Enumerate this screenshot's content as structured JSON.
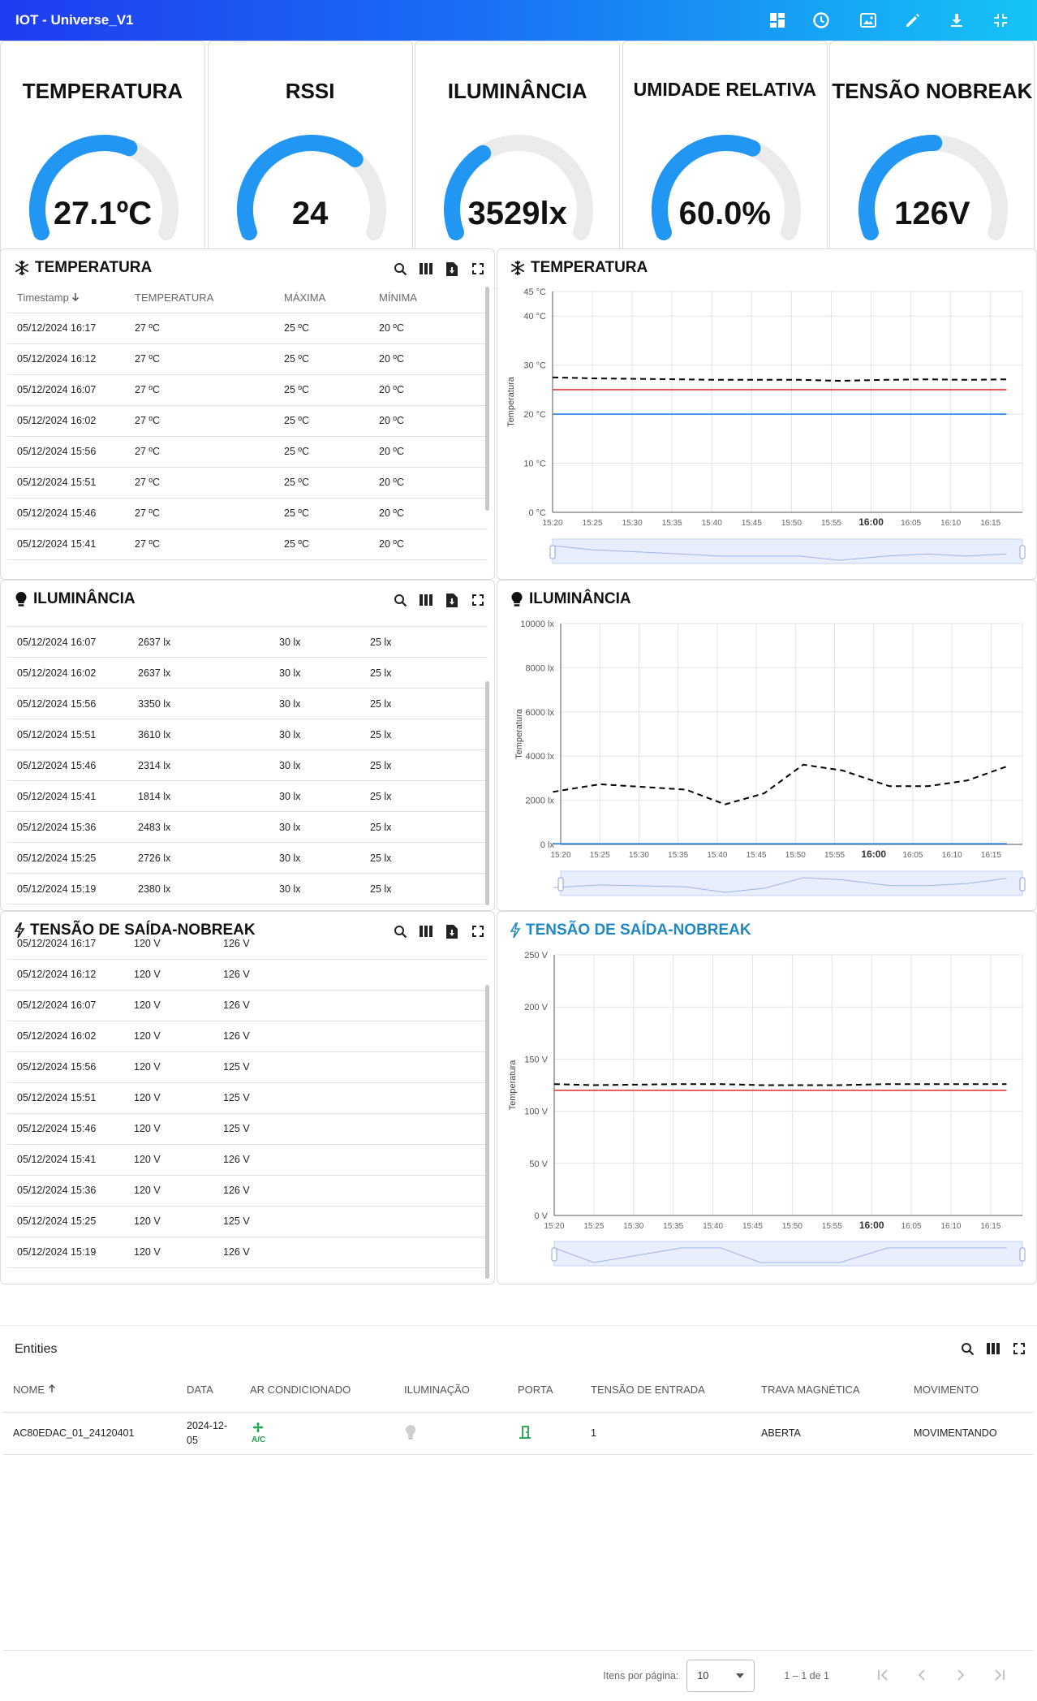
{
  "app": {
    "title": "IOT - Universe_V1"
  },
  "toolbar": {
    "icons": [
      "dashboard-icon",
      "clock-icon",
      "image-icon",
      "edit-icon",
      "download-icon",
      "fullscreen-exit-icon"
    ]
  },
  "gauges": [
    {
      "title": "TEMPERATURA",
      "value": "27.1ºC",
      "min": "0",
      "max": "45",
      "fraction": 0.602,
      "color": "#2196f3"
    },
    {
      "title": "RSSI",
      "value": "24",
      "min": "0",
      "max": "35",
      "fraction": 0.686,
      "color": "#2196f3"
    },
    {
      "title": "ILUMINÂNCIA",
      "value": "3529lx",
      "min": "0",
      "max": "10000",
      "fraction": 0.353,
      "color": "#2196f3"
    },
    {
      "title": "UMIDADE RELATIVA",
      "value": "60.0%",
      "min": "0",
      "max": "99",
      "fraction": 0.606,
      "color": "#2196f3"
    },
    {
      "title": "TENSÃO NOBREAK",
      "value": "126V",
      "min": "0",
      "max": "250",
      "fraction": 0.504,
      "color": "#2196f3"
    }
  ],
  "temp_table": {
    "title": "TEMPERATURA",
    "headers": [
      "Timestamp",
      "TEMPERATURA",
      "MÁXIMA",
      "MÍNIMA"
    ],
    "sort_icon": "arrow-down-icon",
    "rows": [
      [
        "05/12/2024 16:17",
        "27 ºC",
        "25 ºC",
        "20 ºC"
      ],
      [
        "05/12/2024 16:12",
        "27 ºC",
        "25 ºC",
        "20 ºC"
      ],
      [
        "05/12/2024 16:07",
        "27 ºC",
        "25 ºC",
        "20 ºC"
      ],
      [
        "05/12/2024 16:02",
        "27 ºC",
        "25 ºC",
        "20 ºC"
      ],
      [
        "05/12/2024 15:56",
        "27 ºC",
        "25 ºC",
        "20 ºC"
      ],
      [
        "05/12/2024 15:51",
        "27 ºC",
        "25 ºC",
        "20 ºC"
      ],
      [
        "05/12/2024 15:46",
        "27 ºC",
        "25 ºC",
        "20 ºC"
      ],
      [
        "05/12/2024 15:41",
        "27 ºC",
        "25 ºC",
        "20 ºC"
      ]
    ]
  },
  "lux_table": {
    "title": "ILUMINÂNCIA",
    "rows": [
      [
        "05/12/2024 16:07",
        "2637 lx",
        "30 lx",
        "25 lx"
      ],
      [
        "05/12/2024 16:02",
        "2637 lx",
        "30 lx",
        "25 lx"
      ],
      [
        "05/12/2024 15:56",
        "3350 lx",
        "30 lx",
        "25 lx"
      ],
      [
        "05/12/2024 15:51",
        "3610 lx",
        "30 lx",
        "25 lx"
      ],
      [
        "05/12/2024 15:46",
        "2314 lx",
        "30 lx",
        "25 lx"
      ],
      [
        "05/12/2024 15:41",
        "1814 lx",
        "30 lx",
        "25 lx"
      ],
      [
        "05/12/2024 15:36",
        "2483 lx",
        "30 lx",
        "25 lx"
      ],
      [
        "05/12/2024 15:25",
        "2726 lx",
        "30 lx",
        "25 lx"
      ],
      [
        "05/12/2024 15:19",
        "2380 lx",
        "30 lx",
        "25 lx"
      ]
    ]
  },
  "volt_table": {
    "title": "TENSÃO DE SAÍDA-NOBREAK",
    "rows": [
      [
        "05/12/2024 16:17",
        "120 V",
        "126 V"
      ],
      [
        "05/12/2024 16:12",
        "120 V",
        "126 V"
      ],
      [
        "05/12/2024 16:07",
        "120 V",
        "126 V"
      ],
      [
        "05/12/2024 16:02",
        "120 V",
        "126 V"
      ],
      [
        "05/12/2024 15:56",
        "120 V",
        "125 V"
      ],
      [
        "05/12/2024 15:51",
        "120 V",
        "125 V"
      ],
      [
        "05/12/2024 15:46",
        "120 V",
        "125 V"
      ],
      [
        "05/12/2024 15:41",
        "120 V",
        "126 V"
      ],
      [
        "05/12/2024 15:36",
        "120 V",
        "126 V"
      ],
      [
        "05/12/2024 15:25",
        "120 V",
        "125 V"
      ],
      [
        "05/12/2024 15:19",
        "120 V",
        "126 V"
      ]
    ]
  },
  "chart_data": [
    {
      "type": "line",
      "title": "TEMPERATURA",
      "ylabel": "Temperatura",
      "ylim": [
        0,
        45
      ],
      "yticks": [
        0,
        10,
        20,
        30,
        40,
        45
      ],
      "ytick_labels": [
        "0 °C",
        "10 °C",
        "20 °C",
        "30 °C",
        "40 °C",
        "45 °C"
      ],
      "xlim": [
        "15:20",
        "16:19"
      ],
      "xtick_labels": [
        "15:20",
        "15:25",
        "15:30",
        "15:35",
        "15:40",
        "15:45",
        "15:50",
        "15:55",
        "16:00",
        "16:05",
        "16:10",
        "16:15"
      ],
      "series": [
        {
          "color": "#000000",
          "dash": true,
          "x": [
            "15:20",
            "15:25",
            "15:36",
            "15:41",
            "15:46",
            "15:51",
            "15:56",
            "16:02",
            "16:07",
            "16:12",
            "16:17"
          ],
          "y": [
            27.5,
            27.3,
            27.1,
            27.0,
            27.0,
            27.0,
            26.8,
            27.0,
            27.1,
            27.0,
            27.1
          ]
        },
        {
          "color": "#e53935",
          "dash": false,
          "x": [
            "15:20",
            "16:17"
          ],
          "y": [
            25,
            25
          ]
        },
        {
          "color": "#1e88e5",
          "dash": false,
          "x": [
            "15:20",
            "16:17"
          ],
          "y": [
            20,
            20
          ]
        }
      ]
    },
    {
      "type": "line",
      "title": "ILUMINÂNCIA",
      "ylabel": "Temperatura",
      "ylim": [
        0,
        10000
      ],
      "yticks": [
        0,
        2000,
        4000,
        6000,
        8000,
        10000
      ],
      "ytick_labels": [
        "0 lx",
        "2000 lx",
        "4000 lx",
        "6000 lx",
        "8000 lx",
        "10000 lx"
      ],
      "xlim": [
        "15:20",
        "16:19"
      ],
      "xtick_labels": [
        "15:20",
        "15:25",
        "15:30",
        "15:35",
        "15:40",
        "15:45",
        "15:50",
        "15:55",
        "16:00",
        "16:05",
        "16:10",
        "16:15"
      ],
      "series": [
        {
          "color": "#000000",
          "dash": true,
          "x": [
            "15:19",
            "15:25",
            "15:36",
            "15:41",
            "15:46",
            "15:51",
            "15:56",
            "16:02",
            "16:07",
            "16:12",
            "16:17"
          ],
          "y": [
            2380,
            2726,
            2483,
            1814,
            2314,
            3610,
            3350,
            2637,
            2637,
            2900,
            3529
          ]
        },
        {
          "color": "#e53935",
          "dash": false,
          "x": [
            "15:19",
            "16:17"
          ],
          "y": [
            30,
            30
          ]
        },
        {
          "color": "#1e88e5",
          "dash": false,
          "x": [
            "15:19",
            "16:17"
          ],
          "y": [
            25,
            25
          ]
        }
      ]
    },
    {
      "type": "line",
      "title": "TENSÃO DE SAÍDA-NOBREAK",
      "ylabel": "Temperatura",
      "ylim": [
        0,
        250
      ],
      "yticks": [
        0,
        50,
        100,
        150,
        200,
        250
      ],
      "ytick_labels": [
        "0 V",
        "50 V",
        "100 V",
        "150 V",
        "200 V",
        "250 V"
      ],
      "xlim": [
        "15:20",
        "16:19"
      ],
      "xtick_labels": [
        "15:20",
        "15:25",
        "15:30",
        "15:35",
        "15:40",
        "15:45",
        "15:50",
        "15:55",
        "16:00",
        "16:05",
        "16:10",
        "16:15"
      ],
      "series": [
        {
          "color": "#000000",
          "dash": true,
          "x": [
            "15:20",
            "15:25",
            "15:36",
            "15:41",
            "15:46",
            "15:51",
            "15:56",
            "16:02",
            "16:07",
            "16:12",
            "16:17"
          ],
          "y": [
            126,
            125,
            126,
            126,
            125,
            125,
            125,
            126,
            126,
            126,
            126
          ]
        },
        {
          "color": "#e53935",
          "dash": false,
          "x": [
            "15:20",
            "16:17"
          ],
          "y": [
            120,
            120
          ]
        }
      ]
    }
  ],
  "entities": {
    "title": "Entities",
    "headers": [
      "NOME",
      "DATA",
      "AR CONDICIONADO",
      "ILUMINAÇÃO",
      "PORTA",
      "TENSÃO DE ENTRADA",
      "TRAVA MAGNÉTICA",
      "MOVIMENTO"
    ],
    "row": {
      "nome": "AC80EDAC_01_24120401",
      "data_line1": "2024-12-",
      "data_line2": "05",
      "ac_label": "A/C",
      "tensao": "1",
      "trava": "ABERTA",
      "movimento": "MOVIMENTANDO"
    },
    "accent_green": "#1aa34a"
  },
  "pager": {
    "label": "Itens por página:",
    "per_page": "10",
    "range": "1 – 1 de 1"
  }
}
